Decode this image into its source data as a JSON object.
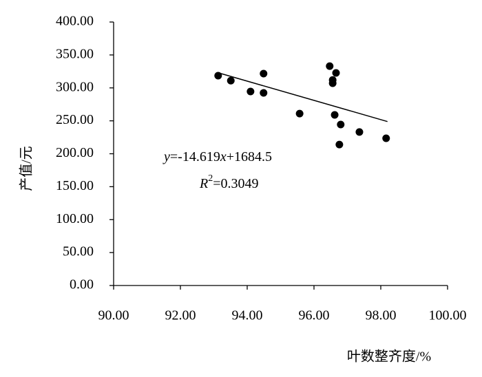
{
  "chart_data": {
    "type": "scatter",
    "x_label": "叶数整齐度/%",
    "y_label": "产值/元",
    "x": [
      93.13,
      93.51,
      94.1,
      94.49,
      94.49,
      95.57,
      96.47,
      96.56,
      96.56,
      96.66,
      96.62,
      96.8,
      96.76,
      97.36,
      98.16
    ],
    "values": [
      318.5,
      311,
      294.5,
      321.7,
      292.4,
      261,
      333,
      312,
      307,
      322.7,
      259,
      244.4,
      214,
      233,
      223.5
    ],
    "color": "#000000",
    "trendline": {
      "x": [
        93.13,
        98.2
      ],
      "y": [
        323.0,
        248.9
      ]
    },
    "equation": [
      "y",
      "=-14.619",
      "x",
      "+1684.5"
    ],
    "r_squared": [
      "R",
      "2",
      "=0.3049"
    ],
    "xlim": [
      90,
      100
    ],
    "xticks": [
      {
        "value": 90,
        "label": "90.00"
      },
      {
        "value": 92,
        "label": "92.00"
      },
      {
        "value": 94,
        "label": "94.00"
      },
      {
        "value": 96,
        "label": "96.00"
      },
      {
        "value": 98,
        "label": "98.00"
      },
      {
        "value": 100,
        "label": "100.00"
      }
    ],
    "ylim": [
      0,
      400
    ],
    "yticks": [
      {
        "value": 0,
        "label": "0.00"
      },
      {
        "value": 50,
        "label": "50.00"
      },
      {
        "value": 100,
        "label": "100.00"
      },
      {
        "value": 150,
        "label": "150.00"
      },
      {
        "value": 200,
        "label": "200.00"
      },
      {
        "value": 250,
        "label": "250.00"
      },
      {
        "value": 300,
        "label": "300.00"
      },
      {
        "value": 350,
        "label": "350.00"
      },
      {
        "value": 400,
        "label": "400.00"
      }
    ]
  }
}
